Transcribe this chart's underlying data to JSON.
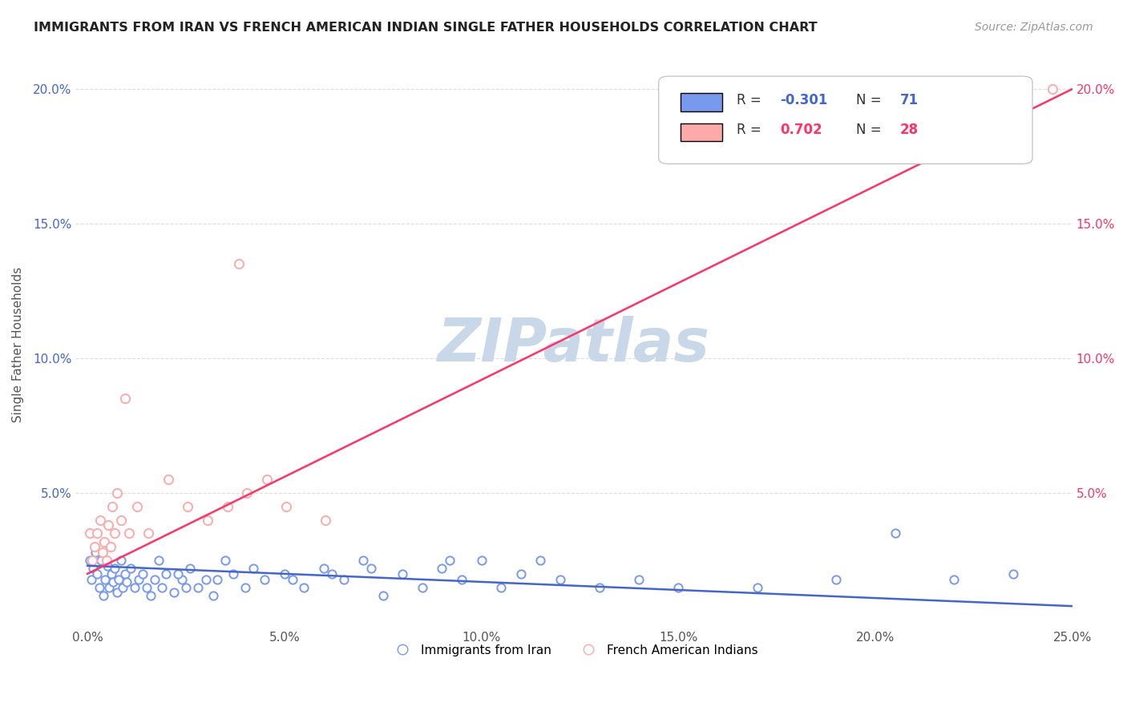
{
  "title": "IMMIGRANTS FROM IRAN VS FRENCH AMERICAN INDIAN SINGLE FATHER HOUSEHOLDS CORRELATION CHART",
  "source": "Source: ZipAtlas.com",
  "xlabel": "",
  "ylabel": "Single Father Households",
  "xlim": [
    -0.3,
    25.0
  ],
  "ylim": [
    0.0,
    21.0
  ],
  "xticks": [
    0.0,
    5.0,
    10.0,
    15.0,
    20.0,
    25.0
  ],
  "yticks": [
    0.0,
    5.0,
    10.0,
    15.0,
    20.0
  ],
  "ytick_labels": [
    "",
    "5.0%",
    "10.0%",
    "15.0%",
    "20.0%"
  ],
  "xtick_labels": [
    "0.0%",
    "5.0%",
    "10.0%",
    "15.0%",
    "20.0%",
    "25.0%"
  ],
  "blue_color": "#7799ee",
  "pink_color": "#ffaaaa",
  "blue_line_color": "#4466cc",
  "pink_line_color": "#ff3366",
  "legend_r_blue": "-0.301",
  "legend_n_blue": "71",
  "legend_r_pink": "0.702",
  "legend_n_pink": "28",
  "watermark": "ZIPatlas",
  "watermark_color": "#c8d8e8",
  "blue_x": [
    0.05,
    0.1,
    0.15,
    0.2,
    0.25,
    0.3,
    0.35,
    0.4,
    0.45,
    0.5,
    0.55,
    0.6,
    0.65,
    0.7,
    0.75,
    0.8,
    0.85,
    0.9,
    0.95,
    1.0,
    1.1,
    1.2,
    1.3,
    1.4,
    1.5,
    1.6,
    1.7,
    1.8,
    1.9,
    2.0,
    2.2,
    2.4,
    2.6,
    2.8,
    3.0,
    3.2,
    3.5,
    3.7,
    4.0,
    4.2,
    4.5,
    5.0,
    5.5,
    6.0,
    6.5,
    7.0,
    7.5,
    8.0,
    8.5,
    9.0,
    9.5,
    10.0,
    10.5,
    11.0,
    11.5,
    12.0,
    13.0,
    14.0,
    15.0,
    17.0,
    19.0,
    20.5,
    22.0,
    23.5,
    2.3,
    2.5,
    3.3,
    5.2,
    6.2,
    7.2,
    9.2
  ],
  "blue_y": [
    2.5,
    1.8,
    2.2,
    2.8,
    2.0,
    1.5,
    2.5,
    1.2,
    1.8,
    2.3,
    1.5,
    2.0,
    1.7,
    2.2,
    1.3,
    1.8,
    2.5,
    1.5,
    2.0,
    1.7,
    2.2,
    1.5,
    1.8,
    2.0,
    1.5,
    1.2,
    1.8,
    2.5,
    1.5,
    2.0,
    1.3,
    1.8,
    2.2,
    1.5,
    1.8,
    1.2,
    2.5,
    2.0,
    1.5,
    2.2,
    1.8,
    2.0,
    1.5,
    2.2,
    1.8,
    2.5,
    1.2,
    2.0,
    1.5,
    2.2,
    1.8,
    2.5,
    1.5,
    2.0,
    2.5,
    1.8,
    1.5,
    1.8,
    1.5,
    1.5,
    1.8,
    3.5,
    1.8,
    2.0,
    2.0,
    1.5,
    1.8,
    1.8,
    2.0,
    2.2,
    2.5
  ],
  "pink_x": [
    0.05,
    0.12,
    0.18,
    0.25,
    0.32,
    0.38,
    0.42,
    0.48,
    0.52,
    0.58,
    0.62,
    0.68,
    0.75,
    0.85,
    0.95,
    1.05,
    1.25,
    1.55,
    2.05,
    2.55,
    3.05,
    3.55,
    4.05,
    4.55,
    3.85,
    5.05,
    6.05,
    24.5
  ],
  "pink_y": [
    3.5,
    2.5,
    3.0,
    3.5,
    4.0,
    2.8,
    3.2,
    2.5,
    3.8,
    3.0,
    4.5,
    3.5,
    5.0,
    4.0,
    8.5,
    3.5,
    4.5,
    3.5,
    5.5,
    4.5,
    4.0,
    4.5,
    5.0,
    5.5,
    13.5,
    4.5,
    4.0,
    20.0
  ],
  "blue_trend_x": [
    0.0,
    25.0
  ],
  "blue_trend_y": [
    2.3,
    0.8
  ],
  "pink_trend_x": [
    0.0,
    25.0
  ],
  "pink_trend_y": [
    2.0,
    20.0
  ]
}
